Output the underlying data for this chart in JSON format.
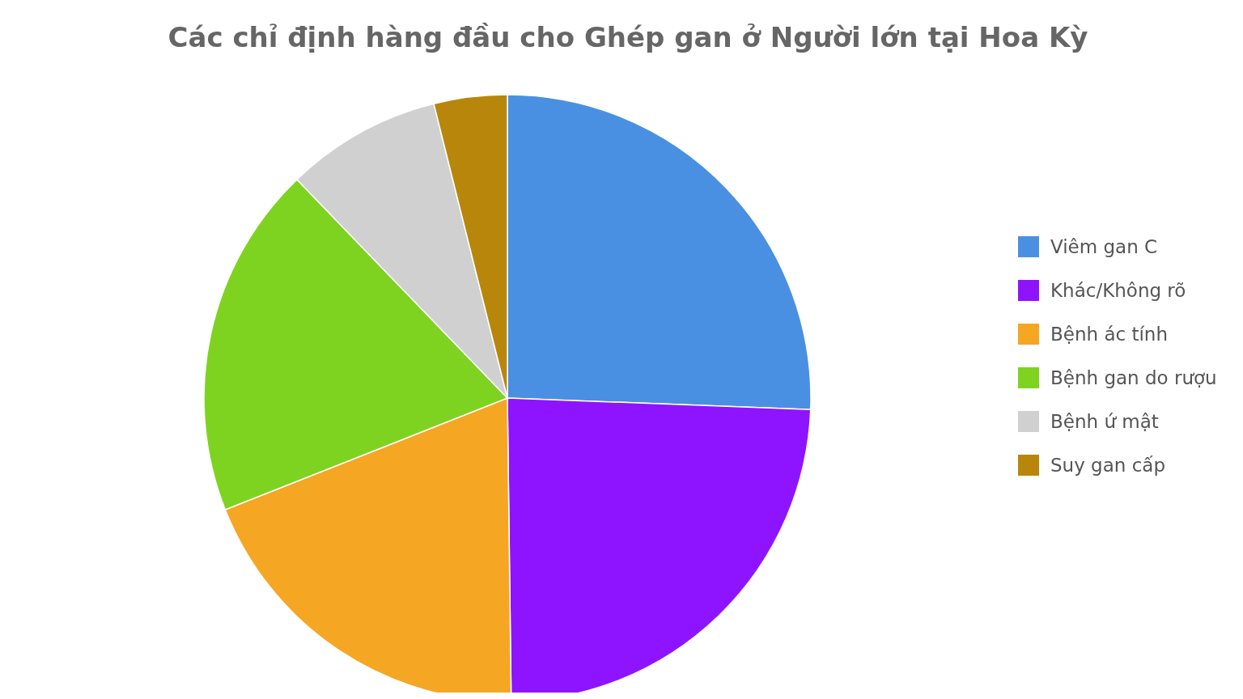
{
  "chart_data": {
    "type": "pie",
    "title": "Các chỉ định hàng đầu cho Ghép gan ở Người lớn tại Hoa Kỳ",
    "categories": [
      "Viêm gan C",
      "Khác/Không rõ",
      "Bệnh ác tính",
      "Bệnh gan do rượu",
      "Bệnh ứ mật",
      "Suy gan cấp"
    ],
    "values": [
      25.6,
      24.2,
      19.2,
      18.8,
      8.3,
      3.9
    ],
    "colors": [
      "#4a90e2",
      "#8e14ff",
      "#f5a623",
      "#7ed321",
      "#d0d0d0",
      "#b8860b"
    ],
    "legend": "right"
  }
}
